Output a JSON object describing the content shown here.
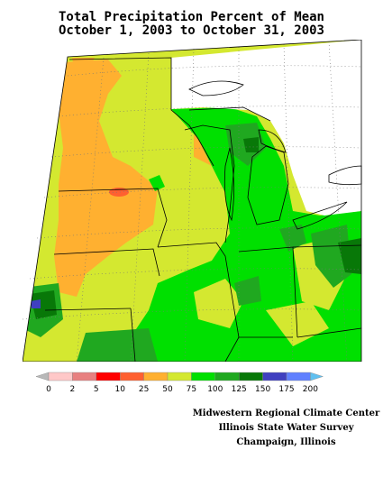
{
  "title": {
    "line1": "Total Precipitation Percent of Mean",
    "line2": "October 1, 2003 to October 31, 2003"
  },
  "legend": {
    "colors": [
      "#b8b8b8",
      "#ffc8c8",
      "#e88080",
      "#ff0000",
      "#ff6030",
      "#ffb030",
      "#d4e830",
      "#00e000",
      "#20a820",
      "#087808",
      "#4040c0",
      "#6080ff",
      "#60c0f0"
    ],
    "labels": [
      "0",
      "2",
      "5",
      "10",
      "25",
      "50",
      "75",
      "100",
      "125",
      "150",
      "175",
      "200"
    ]
  },
  "credits": {
    "line1": "Midwestern Regional Climate Center",
    "line2": "Illinois State Water Survey",
    "line3": "Champaign, Illinois"
  }
}
